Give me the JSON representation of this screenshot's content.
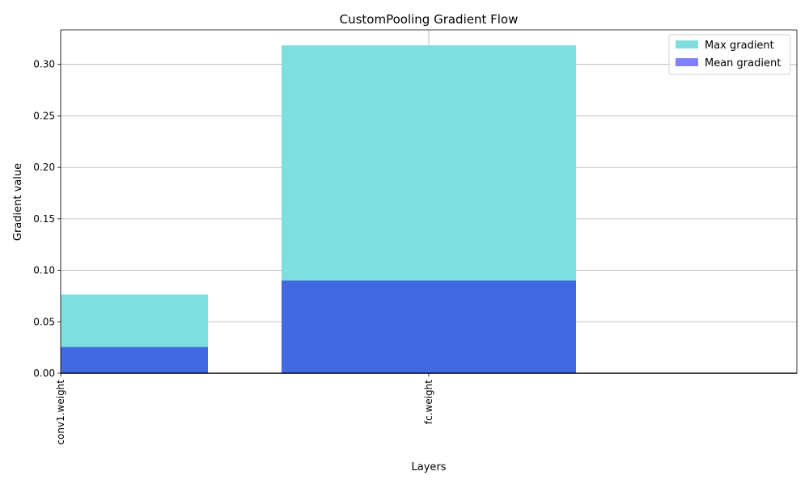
{
  "chart_data": {
    "type": "bar",
    "title": "CustomPooling Gradient Flow",
    "xlabel": "Layers",
    "ylabel": "Gradient value",
    "categories": [
      "conv1.weight",
      "fc.weight"
    ],
    "series": [
      {
        "name": "Max gradient",
        "values": [
          0.0765,
          0.3185
        ],
        "color": "#7fdfdf"
      },
      {
        "name": "Mean gradient",
        "values": [
          0.0255,
          0.09
        ],
        "color": "#4169e1",
        "legend_color": "#8080ff"
      }
    ],
    "xlim": [
      0,
      2
    ],
    "ylim": [
      0,
      0.3335
    ],
    "yticks": [
      0.0,
      0.05,
      0.1,
      0.15,
      0.2,
      0.25,
      0.3
    ],
    "ytick_labels": [
      "0.00",
      "0.05",
      "0.10",
      "0.15",
      "0.20",
      "0.25",
      "0.30"
    ],
    "grid": true,
    "grid_color": "#b0b0b0",
    "legend_position": "top-right"
  }
}
